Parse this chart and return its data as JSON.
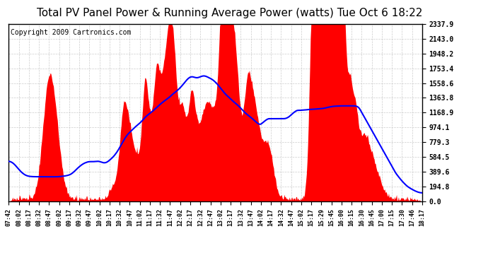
{
  "title": "Total PV Panel Power & Running Average Power (watts) Tue Oct 6 18:22",
  "copyright": "Copyright 2009 Cartronics.com",
  "y_tick_labels": [
    "0.0",
    "194.8",
    "389.6",
    "584.5",
    "779.3",
    "974.1",
    "1168.9",
    "1363.8",
    "1558.6",
    "1753.4",
    "1948.2",
    "2143.0",
    "2337.9"
  ],
  "y_tick_values": [
    0.0,
    194.8,
    389.6,
    584.5,
    779.3,
    974.1,
    1168.9,
    1363.8,
    1558.6,
    1753.4,
    1948.2,
    2143.0,
    2337.9
  ],
  "ymax": 2337.9,
  "ymin": 0.0,
  "x_tick_labels": [
    "07:42",
    "08:02",
    "08:17",
    "08:32",
    "08:47",
    "09:02",
    "09:17",
    "09:32",
    "09:47",
    "10:02",
    "10:17",
    "10:32",
    "10:47",
    "11:02",
    "11:17",
    "11:32",
    "11:47",
    "12:02",
    "12:17",
    "12:32",
    "12:47",
    "13:02",
    "13:17",
    "13:32",
    "13:47",
    "14:02",
    "14:17",
    "14:32",
    "14:47",
    "15:02",
    "15:17",
    "15:29",
    "15:45",
    "16:00",
    "16:15",
    "16:30",
    "16:45",
    "17:00",
    "17:15",
    "17:30",
    "17:46",
    "18:17"
  ],
  "bar_color": "#ff0000",
  "line_color": "#0000ff",
  "background_color": "#ffffff",
  "grid_color": "#c0c0c0",
  "title_fontsize": 11,
  "copyright_fontsize": 7
}
